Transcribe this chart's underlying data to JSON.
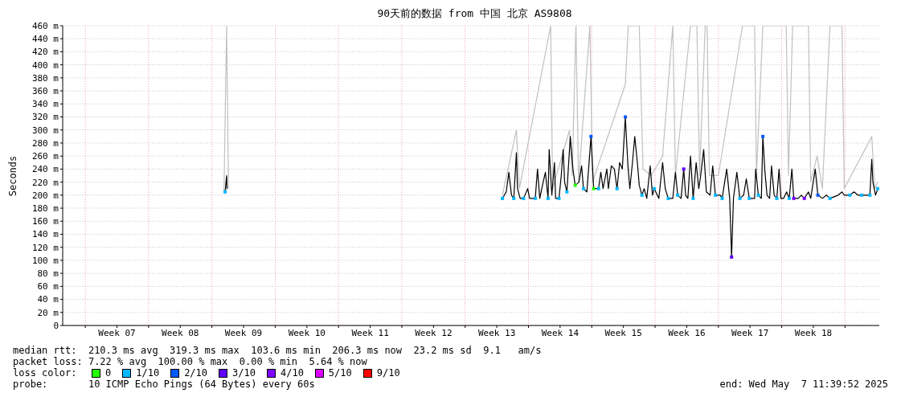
{
  "chart_data": {
    "type": "line",
    "title": "90天前的数据 from 中国 北京 AS9808",
    "ylabel": "Seconds",
    "xlim": [
      "2025-02-07T12:00",
      "2025-05-08T19:00"
    ],
    "xticks": [
      {
        "value": "2025-02-10",
        "label": null
      },
      {
        "value": "2025-02-13T12:00",
        "label": "Week 07"
      },
      {
        "value": "2025-02-17",
        "label": null
      },
      {
        "value": "2025-02-20T12:00",
        "label": "Week 08"
      },
      {
        "value": "2025-02-24",
        "label": null
      },
      {
        "value": "2025-02-27T12:00",
        "label": "Week 09"
      },
      {
        "value": "2025-03-03",
        "label": null
      },
      {
        "value": "2025-03-06T12:00",
        "label": "Week 10"
      },
      {
        "value": "2025-03-10",
        "label": null
      },
      {
        "value": "2025-03-13T12:00",
        "label": "Week 11"
      },
      {
        "value": "2025-03-17",
        "label": null
      },
      {
        "value": "2025-03-20T12:00",
        "label": "Week 12"
      },
      {
        "value": "2025-03-24",
        "label": null
      },
      {
        "value": "2025-03-27T12:00",
        "label": "Week 13"
      },
      {
        "value": "2025-03-31",
        "label": null
      },
      {
        "value": "2025-04-03T12:00",
        "label": "Week 14"
      },
      {
        "value": "2025-04-07",
        "label": null
      },
      {
        "value": "2025-04-10T12:00",
        "label": "Week 15"
      },
      {
        "value": "2025-04-14",
        "label": null
      },
      {
        "value": "2025-04-17T12:00",
        "label": "Week 16"
      },
      {
        "value": "2025-04-21",
        "label": null
      },
      {
        "value": "2025-04-24T12:00",
        "label": "Week 17"
      },
      {
        "value": "2025-04-28",
        "label": null
      },
      {
        "value": "2025-05-01T12:00",
        "label": "Week 18"
      },
      {
        "value": "2025-05-05",
        "label": null
      }
    ],
    "ylim": [
      0,
      460
    ],
    "yticks": [
      0,
      {
        "value": 20,
        "label": "20 m"
      },
      {
        "value": 40,
        "label": "40 m"
      },
      {
        "value": 60,
        "label": "60 m"
      },
      {
        "value": 80,
        "label": "80 m"
      },
      {
        "value": 100,
        "label": "100 m"
      },
      {
        "value": 120,
        "label": "120 m"
      },
      {
        "value": 140,
        "label": "140 m"
      },
      {
        "value": 160,
        "label": "160 m"
      },
      {
        "value": 180,
        "label": "180 m"
      },
      {
        "value": 200,
        "label": "200 m"
      },
      {
        "value": 220,
        "label": "220 m"
      },
      {
        "value": 240,
        "label": "240 m"
      },
      {
        "value": 260,
        "label": "260 m"
      },
      {
        "value": 280,
        "label": "280 m"
      },
      {
        "value": 300,
        "label": "300 m"
      },
      {
        "value": 320,
        "label": "320 m"
      },
      {
        "value": 340,
        "label": "340 m"
      },
      {
        "value": 360,
        "label": "360 m"
      },
      {
        "value": 380,
        "label": "380 m"
      },
      {
        "value": 400,
        "label": "400 m"
      },
      {
        "value": 420,
        "label": "420 m"
      },
      {
        "value": 440,
        "label": "440 m"
      },
      {
        "value": 460,
        "label": "460 m"
      }
    ],
    "grid": true,
    "legend": "bottom",
    "legend_title": "loss color:",
    "marker": "none",
    "line_style": "solid",
    "annotations": [
      "median rtt:  210.3 ms avg  319.3 ms max  103.6 ms min  206.3 ms now  23.2 ms sd  9.1   am/s",
      "packet loss: 7.22 % avg  100.00 % max  0.00 % min  5.64 % now",
      "probe:       10 ICMP Echo Pings (64 Bytes) every 60s",
      "end: Wed May  7 11:39:52 2025"
    ],
    "series": [
      {
        "color": "#c0c0c0",
        "x": [
          "2025-02-25T08:00",
          "2025-02-25T15:00",
          "2025-02-25T20:00",
          "2025-02-27T12:00",
          "2025-03-28T03:00",
          "2025-03-29T16:00",
          "2025-03-30T00:00",
          "2025-04-02T11:00",
          "2025-04-02T16:00",
          "2025-04-04T13:00",
          "2025-04-04T20:00",
          "2025-04-05T06:00",
          "2025-04-05T13:00",
          "2025-04-06T19:00",
          "2025-04-07T02:00",
          "2025-04-10T17:00",
          "2025-04-11T01:00",
          "2025-04-11T08:00",
          "2025-04-11T13:00",
          "2025-04-12T01:00",
          "2025-04-12T06:00",
          "2025-04-12T16:00",
          "2025-04-13T14:00",
          "2025-04-14T20:00",
          "2025-04-15T23:00",
          "2025-04-16T06:00",
          "2025-04-17T22:00",
          "2025-04-18T01:00",
          "2025-04-18T08:00",
          "2025-04-18T15:00",
          "2025-04-18T22:00",
          "2025-04-19T13:00",
          "2025-04-19T18:00",
          "2025-04-20T00:00",
          "2025-04-21T00:00",
          "2025-04-23T16:00",
          "2025-04-24T02:00",
          "2025-04-24T12:00",
          "2025-04-25T00:00",
          "2025-04-25T05:00",
          "2025-04-25T22:00",
          "2025-04-26T06:00",
          "2025-04-26T18:00",
          "2025-04-27T04:00",
          "2025-04-27T17:00",
          "2025-04-28T02:00",
          "2025-04-28T12:00",
          "2025-04-28T18:00",
          "2025-04-29T05:00",
          "2025-04-29T15:00",
          "2025-04-30T02:00",
          "2025-04-30T12:00",
          "2025-04-30T23:00",
          "2025-05-01T05:00",
          "2025-05-01T22:00",
          "2025-05-02T12:00",
          "2025-05-03T08:00",
          "2025-05-03T18:00",
          "2025-05-04T06:00",
          "2025-05-04T16:00",
          "2025-05-04T22:00",
          "2025-05-07T23:00",
          "2025-05-08T07:00",
          "2025-05-08T15:00"
        ],
        "values": [
          205,
          460,
          210,
          null,
          200,
          300,
          210,
          460,
          210,
          300,
          230,
          460,
          220,
          460,
          220,
          370,
          460,
          460,
          460,
          460,
          460,
          240,
          230,
          260,
          460,
          230,
          460,
          460,
          460,
          460,
          230,
          460,
          460,
          230,
          230,
          460,
          460,
          460,
          460,
          230,
          460,
          460,
          460,
          460,
          460,
          460,
          460,
          230,
          460,
          460,
          460,
          460,
          460,
          220,
          260,
          210,
          460,
          460,
          460,
          460,
          210,
          290,
          210,
          220
        ]
      },
      {
        "color": "#000000",
        "x": [
          "2025-02-25T11:00",
          "2025-02-25T15:00",
          "2025-02-25T16:00",
          "2025-02-27T12:00",
          "2025-03-28T03:00",
          "2025-03-28T13:00",
          "2025-03-28T20:00",
          "2025-03-29T03:00",
          "2025-03-29T09:00",
          "2025-03-29T16:00",
          "2025-03-29T19:00",
          "2025-03-30T02:00",
          "2025-03-30T11:00",
          "2025-03-30T22:00",
          "2025-03-31T03:00",
          "2025-03-31T18:00",
          "2025-04-01T00:00",
          "2025-04-01T06:00",
          "2025-04-01T15:00",
          "2025-04-01T21:00",
          "2025-04-02T04:00",
          "2025-04-02T07:00",
          "2025-04-02T14:00",
          "2025-04-02T21:00",
          "2025-04-03T00:00",
          "2025-04-03T09:00",
          "2025-04-03T15:00",
          "2025-04-03T20:00",
          "2025-04-04T00:00",
          "2025-04-04T06:00",
          "2025-04-04T15:00",
          "2025-04-04T22:00",
          "2025-04-05T04:00",
          "2025-04-05T14:00",
          "2025-04-05T21:00",
          "2025-04-06T02:00",
          "2025-04-06T11:00",
          "2025-04-06T22:00",
          "2025-04-07T05:00",
          "2025-04-07T18:00",
          "2025-04-08T00:00",
          "2025-04-08T06:00",
          "2025-04-08T16:00",
          "2025-04-08T20:00",
          "2025-04-09T04:00",
          "2025-04-09T12:00",
          "2025-04-09T19:00",
          "2025-04-10T02:00",
          "2025-04-10T09:00",
          "2025-04-10T17:00",
          "2025-04-11T00:00",
          "2025-04-11T05:00",
          "2025-04-11T12:00",
          "2025-04-11T18:00",
          "2025-04-12T01:00",
          "2025-04-12T06:00",
          "2025-04-12T13:00",
          "2025-04-12T19:00",
          "2025-04-13T02:00",
          "2025-04-13T11:00",
          "2025-04-13T17:00",
          "2025-04-13T22:00",
          "2025-04-14T10:00",
          "2025-04-14T20:00",
          "2025-04-15T03:00",
          "2025-04-15T11:00",
          "2025-04-15T23:00",
          "2025-04-16T06:00",
          "2025-04-16T12:00",
          "2025-04-16T21:00",
          "2025-04-17T04:00",
          "2025-04-17T09:00",
          "2025-04-17T15:00",
          "2025-04-17T22:00",
          "2025-04-18T05:00",
          "2025-04-18T13:00",
          "2025-04-18T20:00",
          "2025-04-19T01:00",
          "2025-04-19T09:00",
          "2025-04-19T16:00",
          "2025-04-20T02:00",
          "2025-04-20T09:00",
          "2025-04-20T16:00",
          "2025-04-21T05:00",
          "2025-04-21T10:00",
          "2025-04-21T22:00",
          "2025-04-22T06:00",
          "2025-04-22T11:00",
          "2025-04-22T16:00",
          "2025-04-23T01:00",
          "2025-04-23T09:00",
          "2025-04-23T19:00",
          "2025-04-24T02:00",
          "2025-04-24T10:00",
          "2025-04-25T00:00",
          "2025-04-25T03:00",
          "2025-04-25T10:00",
          "2025-04-25T18:00",
          "2025-04-25T22:00",
          "2025-04-26T03:00",
          "2025-04-26T09:00",
          "2025-04-26T16:00",
          "2025-04-26T21:00",
          "2025-04-27T04:00",
          "2025-04-27T11:00",
          "2025-04-27T17:00",
          "2025-04-27T22:00",
          "2025-04-28T05:00",
          "2025-04-28T13:00",
          "2025-04-28T20:00",
          "2025-04-29T03:00",
          "2025-04-29T08:00",
          "2025-04-29T20:00",
          "2025-04-30T04:00",
          "2025-04-30T12:00",
          "2025-04-30T23:00",
          "2025-05-01T05:00",
          "2025-05-01T17:00",
          "2025-05-02T00:00",
          "2025-05-02T12:00",
          "2025-05-02T23:00",
          "2025-05-03T08:00",
          "2025-05-04T06:00",
          "2025-05-04T16:00",
          "2025-05-04T22:00",
          "2025-05-05T13:00",
          "2025-05-06T00:00",
          "2025-05-06T10:00",
          "2025-05-06T20:00",
          "2025-05-07T07:00",
          "2025-05-07T18:00",
          "2025-05-07T23:00",
          "2025-05-08T02:00",
          "2025-05-08T09:00",
          "2025-05-08T15:00"
        ],
        "values": [
          205,
          230,
          210,
          null,
          195,
          205,
          235,
          200,
          195,
          265,
          210,
          195,
          195,
          210,
          195,
          195,
          240,
          195,
          220,
          235,
          195,
          270,
          200,
          250,
          195,
          195,
          230,
          270,
          220,
          205,
          290,
          240,
          215,
          220,
          245,
          210,
          205,
          290,
          210,
          210,
          235,
          210,
          240,
          210,
          245,
          240,
          210,
          250,
          240,
          320,
          245,
          210,
          250,
          290,
          250,
          215,
          200,
          210,
          195,
          245,
          200,
          210,
          195,
          250,
          210,
          195,
          195,
          235,
          200,
          195,
          240,
          200,
          195,
          260,
          195,
          250,
          210,
          230,
          270,
          205,
          200,
          245,
          200,
          200,
          195,
          240,
          195,
          105,
          195,
          235,
          195,
          200,
          225,
          195,
          195,
          240,
          200,
          195,
          290,
          240,
          200,
          195,
          245,
          200,
          195,
          240,
          195,
          195,
          205,
          195,
          240,
          195,
          195,
          200,
          195,
          205,
          195,
          240,
          200,
          195,
          200,
          195,
          200,
          205,
          200,
          200,
          205,
          200,
          200,
          200,
          200,
          255,
          220,
          200,
          210
        ]
      },
      {
        "type": "scatter",
        "marker": "square",
        "name": "0",
        "color": "#26ff00",
        "x": [
          "2025-04-05T04:00",
          "2025-04-07T05:00"
        ],
        "values": [
          215,
          210
        ]
      },
      {
        "type": "scatter",
        "marker": "square",
        "name": "1/10",
        "color": "#00b8ff",
        "x": [
          "2025-02-25T11:00",
          "2025-03-28T03:00",
          "2025-03-29T09:00",
          "2025-03-30T11:00",
          "2025-03-31T18:00",
          "2025-04-02T04:00",
          "2025-04-03T09:00",
          "2025-04-04T06:00",
          "2025-04-06T02:00",
          "2025-04-07T18:00",
          "2025-04-09T19:00",
          "2025-04-12T13:00",
          "2025-04-13T22:00",
          "2025-04-15T11:00",
          "2025-04-16T12:00",
          "2025-04-18T05:00",
          "2025-04-20T16:00",
          "2025-04-21T10:00",
          "2025-04-23T09:00",
          "2025-04-24T10:00",
          "2025-04-25T10:00",
          "2025-04-27T11:00",
          "2025-04-28T20:00",
          "2025-05-03T08:00",
          "2025-05-05T13:00",
          "2025-05-06T20:00",
          "2025-05-07T18:00",
          "2025-05-08T15:00"
        ],
        "values": [
          205,
          195,
          195,
          195,
          195,
          195,
          195,
          205,
          210,
          210,
          210,
          200,
          210,
          195,
          200,
          195,
          200,
          195,
          195,
          195,
          200,
          195,
          195,
          195,
          200,
          200,
          200,
          210
        ]
      },
      {
        "type": "scatter",
        "marker": "square",
        "name": "2/10",
        "color": "#0059ff",
        "x": [
          "2025-04-06T22:00",
          "2025-04-10T17:00",
          "2025-04-25T22:00",
          "2025-05-02T00:00"
        ],
        "values": [
          290,
          320,
          290,
          200
        ]
      },
      {
        "type": "scatter",
        "marker": "square",
        "name": "3/10",
        "color": "#5e00ff",
        "x": [
          "2025-04-17T04:00",
          "2025-04-22T11:00"
        ],
        "values": [
          240,
          105
        ]
      },
      {
        "type": "scatter",
        "marker": "square",
        "name": "4/10",
        "color": "#7e00ff",
        "x": [
          "2025-04-29T08:00",
          "2025-04-30T12:00"
        ],
        "values": [
          195,
          195
        ]
      },
      {
        "type": "scatter",
        "marker": "square",
        "name": "5/10",
        "color": "#dd00ff"
      },
      {
        "type": "scatter",
        "marker": "square",
        "name": "9/10",
        "color": "#ff0000"
      }
    ]
  }
}
